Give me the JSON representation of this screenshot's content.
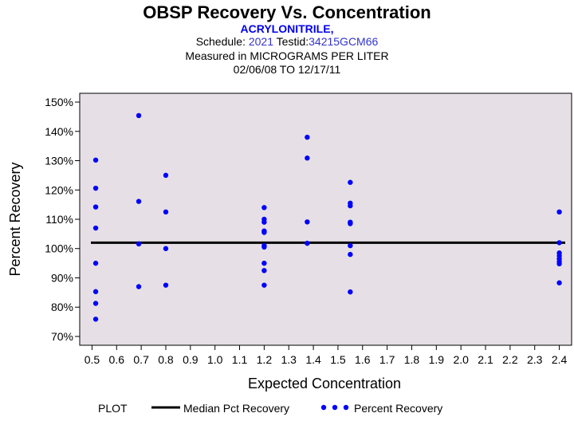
{
  "header": {
    "title": "OBSP Recovery Vs. Concentration",
    "analyte": "ACRYLONITRILE,",
    "schedule_label": "Schedule:",
    "schedule_value": "2021",
    "testid_label": "Testid:",
    "testid_value": "34215GCM66",
    "measured_prefix": "Measured in",
    "units": "MICROGRAMS PER LITER",
    "date_range": "02/06/08 TO 12/17/11"
  },
  "legend": {
    "plot_label": "PLOT",
    "median_label": "Median Pct Recovery",
    "points_label": "Percent Recovery"
  },
  "colors": {
    "points": "#0000ff",
    "plot_bg": "#e6e0e6",
    "median": "#000000"
  },
  "chart_data": {
    "type": "scatter",
    "xlabel": "Expected Concentration",
    "ylabel": "Percent Recovery",
    "xlim": [
      0.45,
      2.45
    ],
    "ylim": [
      67,
      153
    ],
    "x_ticks": [
      0.5,
      0.6,
      0.7,
      0.8,
      0.9,
      1.0,
      1.1,
      1.2,
      1.3,
      1.4,
      1.5,
      1.6,
      1.7,
      1.8,
      1.9,
      2.0,
      2.1,
      2.2,
      2.3,
      2.4
    ],
    "x_tick_labels": [
      "0.5",
      "0.6",
      "0.7",
      "0.8",
      "0.9",
      "1.0",
      "1.1",
      "1.2",
      "1.3",
      "1.4",
      "1.5",
      "1.6",
      "1.7",
      "1.8",
      "1.9",
      "2.0",
      "2.1",
      "2.2",
      "2.3",
      "2.4"
    ],
    "y_ticks": [
      70,
      80,
      90,
      100,
      110,
      120,
      130,
      140,
      150
    ],
    "y_tick_labels": [
      "70%",
      "80%",
      "90%",
      "100%",
      "110%",
      "120%",
      "130%",
      "140%",
      "150%"
    ],
    "median_pct_recovery": 102,
    "series": [
      {
        "name": "Percent Recovery",
        "points": [
          [
            0.515,
            130.2
          ],
          [
            0.515,
            120.6
          ],
          [
            0.515,
            114.2
          ],
          [
            0.515,
            107.0
          ],
          [
            0.515,
            95.0
          ],
          [
            0.515,
            85.3
          ],
          [
            0.515,
            81.3
          ],
          [
            0.515,
            75.9
          ],
          [
            0.69,
            145.4
          ],
          [
            0.69,
            116.1
          ],
          [
            0.69,
            101.6
          ],
          [
            0.69,
            87.0
          ],
          [
            0.8,
            125.0
          ],
          [
            0.8,
            112.5
          ],
          [
            0.8,
            100.0
          ],
          [
            0.8,
            87.5
          ],
          [
            1.2,
            114.0
          ],
          [
            1.2,
            110.0
          ],
          [
            1.2,
            109.0
          ],
          [
            1.2,
            106.0
          ],
          [
            1.2,
            105.5
          ],
          [
            1.2,
            101.0
          ],
          [
            1.2,
            100.5
          ],
          [
            1.2,
            95.0
          ],
          [
            1.2,
            92.5
          ],
          [
            1.2,
            87.5
          ],
          [
            1.375,
            138.0
          ],
          [
            1.375,
            130.9
          ],
          [
            1.375,
            109.1
          ],
          [
            1.375,
            101.8
          ],
          [
            1.55,
            122.6
          ],
          [
            1.55,
            115.5
          ],
          [
            1.55,
            114.6
          ],
          [
            1.55,
            109.0
          ],
          [
            1.55,
            108.5
          ],
          [
            1.55,
            101.0
          ],
          [
            1.55,
            98.0
          ],
          [
            1.55,
            85.2
          ],
          [
            2.4,
            112.5
          ],
          [
            2.4,
            102.0
          ],
          [
            2.4,
            98.5
          ],
          [
            2.4,
            97.5
          ],
          [
            2.4,
            96.5
          ],
          [
            2.4,
            95.5
          ],
          [
            2.4,
            94.8
          ],
          [
            2.4,
            88.3
          ]
        ]
      }
    ]
  }
}
